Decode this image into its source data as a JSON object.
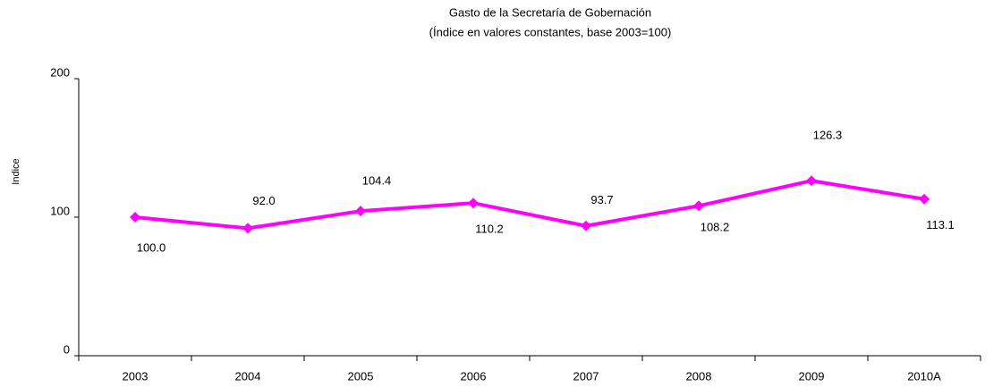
{
  "chart_data": {
    "type": "line",
    "title": "Gasto de la Secretaría de Gobernación",
    "subtitle": "(Índice en valores constantes, base 2003=100)",
    "y_label": "Indice",
    "categories": [
      "2003",
      "2004",
      "2005",
      "2006",
      "2007",
      "2008",
      "2009",
      "2010A"
    ],
    "series": [
      {
        "name": "Indice",
        "color": "#ff00ff",
        "values": [
          100,
          92,
          104.4,
          110.2,
          93.7,
          108.2,
          126.3,
          113.1
        ],
        "value_labels": [
          "100.0",
          "92.0",
          "104.4",
          "110.2",
          "93.7",
          "108.2",
          "126.3",
          "113.1"
        ]
      }
    ],
    "ylim": [
      0,
      200
    ],
    "yticks": [
      0,
      100,
      200
    ],
    "grid": false
  }
}
